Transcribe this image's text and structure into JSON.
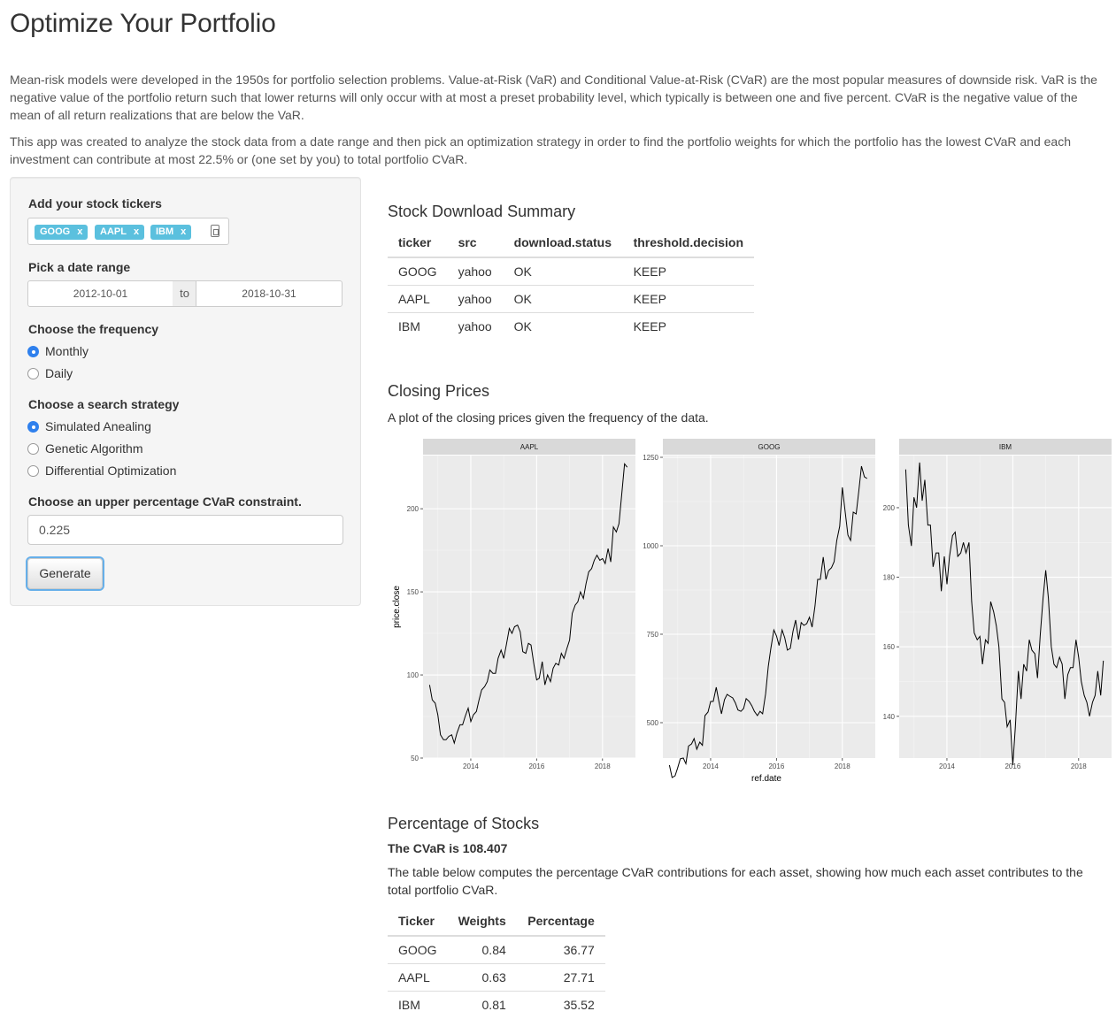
{
  "page": {
    "title": "Optimize Your Portfolio",
    "intro_1": "Mean-risk models were developed in the 1950s for portfolio selection problems. Value-at-Risk (VaR) and Conditional Value-at-Risk (CVaR) are the most popular measures of downside risk. VaR is the negative value of the portfolio return such that lower returns will only occur with at most a preset probability level, which typically is between one and five percent. CVaR is the negative value of the mean of all return realizations that are below the VaR.",
    "intro_2": "This app was created to analyze the stock data from a date range and then pick an optimization strategy in order to find the portfolio weights for which the portfolio has the lowest CVaR and each investment can contribute at most 22.5% or (one set by you) to total portfolio CVaR."
  },
  "sidebar": {
    "tickers_label": "Add your stock tickers",
    "tickers": [
      {
        "label": "GOOG",
        "remove": "x"
      },
      {
        "label": "AAPL",
        "remove": "x"
      },
      {
        "label": "IBM",
        "remove": "x"
      }
    ],
    "date_label": "Pick a date range",
    "date_start": "2012-10-01",
    "date_sep": "to",
    "date_end": "2018-10-31",
    "frequency_label": "Choose the frequency",
    "frequency_options": [
      {
        "label": "Monthly",
        "selected": true
      },
      {
        "label": "Daily",
        "selected": false
      }
    ],
    "strategy_label": "Choose a search strategy",
    "strategy_options": [
      {
        "label": "Simulated Anealing",
        "selected": true
      },
      {
        "label": "Genetic Algorithm",
        "selected": false
      },
      {
        "label": "Differential Optimization",
        "selected": false
      }
    ],
    "cvar_label": "Choose an upper percentage CVaR constraint.",
    "cvar_value": "0.225",
    "generate_label": "Generate"
  },
  "download_summary": {
    "heading": "Stock Download Summary",
    "columns": [
      "ticker",
      "src",
      "download.status",
      "threshold.decision"
    ],
    "rows": [
      [
        "GOOG",
        "yahoo",
        "OK",
        "KEEP"
      ],
      [
        "AAPL",
        "yahoo",
        "OK",
        "KEEP"
      ],
      [
        "IBM",
        "yahoo",
        "OK",
        "KEEP"
      ]
    ]
  },
  "closing_prices": {
    "heading": "Closing Prices",
    "description": "A plot of the closing prices given the frequency of the data."
  },
  "chart_data": {
    "type": "line",
    "xlabel": "ref.date",
    "ylabel": "price.close",
    "panels": [
      {
        "name": "AAPL",
        "ylim": [
          50,
          232
        ],
        "yticks": [
          50,
          100,
          150,
          200
        ],
        "xticks": [
          "2014",
          "2016",
          "2018"
        ],
        "x": [
          2012.75,
          2012.83,
          2012.92,
          2013.0,
          2013.08,
          2013.17,
          2013.25,
          2013.33,
          2013.42,
          2013.5,
          2013.58,
          2013.67,
          2013.75,
          2013.83,
          2013.92,
          2014.0,
          2014.08,
          2014.17,
          2014.25,
          2014.33,
          2014.42,
          2014.5,
          2014.58,
          2014.67,
          2014.75,
          2014.83,
          2014.92,
          2015.0,
          2015.08,
          2015.17,
          2015.25,
          2015.33,
          2015.42,
          2015.5,
          2015.58,
          2015.67,
          2015.75,
          2015.83,
          2015.92,
          2016.0,
          2016.08,
          2016.17,
          2016.25,
          2016.33,
          2016.42,
          2016.5,
          2016.58,
          2016.67,
          2016.75,
          2016.83,
          2016.92,
          2017.0,
          2017.08,
          2017.17,
          2017.25,
          2017.33,
          2017.42,
          2017.5,
          2017.58,
          2017.67,
          2017.75,
          2017.83,
          2017.92,
          2018.0,
          2018.08,
          2018.17,
          2018.25,
          2018.33,
          2018.42,
          2018.5,
          2018.58,
          2018.67,
          2018.75
        ],
        "y": [
          94,
          85,
          83,
          76,
          64,
          61,
          61,
          63,
          64,
          59,
          65,
          70,
          70,
          75,
          80,
          72,
          76,
          78,
          85,
          91,
          93,
          96,
          103,
          101,
          101,
          110,
          115,
          110,
          118,
          128,
          125,
          129,
          130,
          126,
          114,
          113,
          119,
          118,
          106,
          97,
          98,
          108,
          94,
          100,
          96,
          104,
          107,
          106,
          113,
          110,
          116,
          121,
          137,
          142,
          144,
          150,
          146,
          155,
          162,
          164,
          169,
          172,
          169,
          170,
          167,
          176,
          168,
          189,
          186,
          191,
          208,
          227,
          225
        ]
      },
      {
        "name": "GOOG",
        "ylim": [
          400,
          1255
        ],
        "yticks": [
          500,
          750,
          1000,
          1250
        ],
        "xticks": [
          "2014",
          "2016",
          "2018"
        ],
        "x": [
          2012.75,
          2012.83,
          2012.92,
          2013.0,
          2013.08,
          2013.17,
          2013.25,
          2013.33,
          2013.42,
          2013.5,
          2013.58,
          2013.67,
          2013.75,
          2013.83,
          2013.92,
          2014.0,
          2014.08,
          2014.17,
          2014.25,
          2014.33,
          2014.42,
          2014.5,
          2014.58,
          2014.67,
          2014.75,
          2014.83,
          2014.92,
          2015.0,
          2015.08,
          2015.17,
          2015.25,
          2015.33,
          2015.42,
          2015.5,
          2015.58,
          2015.67,
          2015.75,
          2015.83,
          2015.92,
          2016.0,
          2016.08,
          2016.17,
          2016.25,
          2016.33,
          2016.42,
          2016.5,
          2016.58,
          2016.67,
          2016.75,
          2016.83,
          2016.92,
          2017.0,
          2017.08,
          2017.17,
          2017.25,
          2017.33,
          2017.42,
          2017.5,
          2017.58,
          2017.67,
          2017.75,
          2017.83,
          2017.92,
          2018.0,
          2018.08,
          2018.17,
          2018.25,
          2018.33,
          2018.42,
          2018.5,
          2018.58,
          2018.67,
          2018.75
        ],
        "y": [
          380,
          345,
          350,
          372,
          398,
          400,
          384,
          434,
          440,
          455,
          425,
          445,
          436,
          520,
          530,
          560,
          560,
          600,
          560,
          525,
          565,
          580,
          575,
          570,
          556,
          536,
          532,
          540,
          568,
          560,
          548,
          532,
          520,
          532,
          525,
          582,
          659,
          710,
          762,
          745,
          718,
          762,
          740,
          705,
          710,
          758,
          790,
          735,
          783,
          775,
          780,
          798,
          770,
          830,
          905,
          905,
          968,
          905,
          930,
          938,
          955,
          1015,
          1055,
          1165,
          1100,
          1030,
          1015,
          1095,
          1090,
          1155,
          1225,
          1195,
          1190
        ]
      },
      {
        "name": "IBM",
        "ylim": [
          128,
          215
        ],
        "yticks": [
          140,
          160,
          180,
          200
        ],
        "xticks": [
          "2014",
          "2016",
          "2018"
        ],
        "x": [
          2012.75,
          2012.83,
          2012.92,
          2013.0,
          2013.08,
          2013.17,
          2013.25,
          2013.33,
          2013.42,
          2013.5,
          2013.58,
          2013.67,
          2013.75,
          2013.83,
          2013.92,
          2014.0,
          2014.08,
          2014.17,
          2014.25,
          2014.33,
          2014.42,
          2014.5,
          2014.58,
          2014.67,
          2014.75,
          2014.83,
          2014.92,
          2015.0,
          2015.08,
          2015.17,
          2015.25,
          2015.33,
          2015.42,
          2015.5,
          2015.58,
          2015.67,
          2015.75,
          2015.83,
          2015.92,
          2016.0,
          2016.08,
          2016.17,
          2016.25,
          2016.33,
          2016.42,
          2016.5,
          2016.58,
          2016.67,
          2016.75,
          2016.83,
          2016.92,
          2017.0,
          2017.08,
          2017.17,
          2017.25,
          2017.33,
          2017.42,
          2017.5,
          2017.58,
          2017.67,
          2017.75,
          2017.83,
          2017.92,
          2018.0,
          2018.08,
          2018.17,
          2018.25,
          2018.33,
          2018.42,
          2018.5,
          2018.58,
          2018.67,
          2018.75
        ],
        "y": [
          211,
          195,
          189,
          203,
          200,
          213,
          202,
          208,
          195,
          195,
          183,
          187,
          187,
          176,
          186,
          178,
          186,
          192,
          193,
          186,
          187,
          190,
          187,
          190,
          173,
          164,
          162,
          163,
          155,
          162,
          161,
          173,
          170,
          166,
          160,
          145,
          144,
          137,
          139,
          126,
          137,
          153,
          145,
          155,
          153,
          162,
          159,
          158,
          151,
          163,
          174,
          182,
          174,
          160,
          155,
          154,
          157,
          155,
          145,
          152,
          154,
          154,
          162,
          157,
          150,
          146,
          144,
          140,
          144,
          146,
          153,
          146,
          156
        ]
      }
    ]
  },
  "percentage": {
    "heading": "Percentage of Stocks",
    "cvar_text": "The CVaR is 108.407",
    "description": "The table below computes the percentage CVaR contributions for each asset, showing how much each asset contributes to the total portfolio CVaR.",
    "columns": [
      "Ticker",
      "Weights",
      "Percentage"
    ],
    "rows": [
      [
        "GOOG",
        "0.84",
        "36.77"
      ],
      [
        "AAPL",
        "0.63",
        "27.71"
      ],
      [
        "IBM",
        "0.81",
        "35.52"
      ]
    ]
  }
}
